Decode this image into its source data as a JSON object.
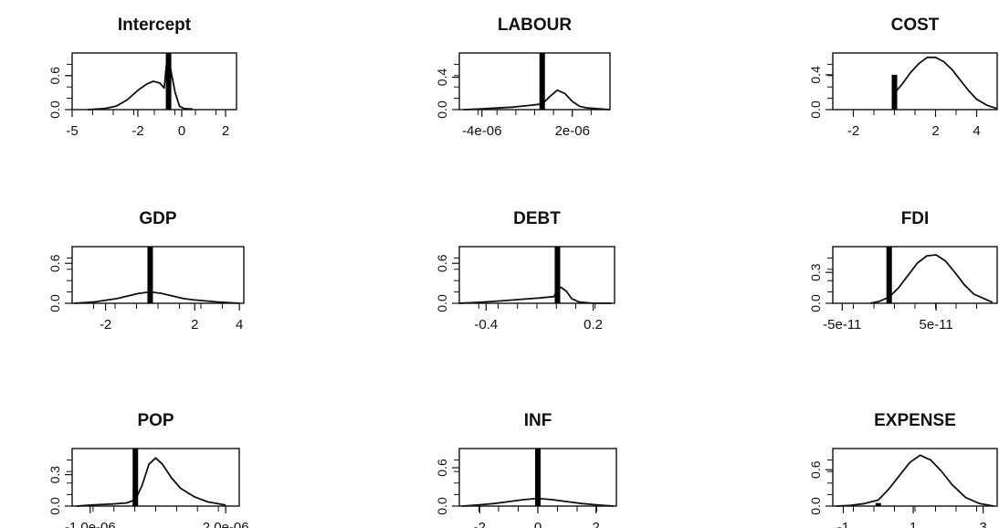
{
  "figure": {
    "description_type": "posterior-density-grid",
    "columns": 3,
    "rows": 3
  },
  "chart_data": [
    {
      "type": "line",
      "title": "Intercept",
      "xlabel": "",
      "ylabel": "",
      "xlim": [
        -5,
        2.5
      ],
      "ylim": [
        0,
        1.0
      ],
      "xticks": [
        -5,
        -2,
        0,
        2
      ],
      "xtick_labels": [
        "-5",
        "-2",
        "0",
        "2"
      ],
      "yticks": [
        0.0,
        0.6
      ],
      "ytick_labels": [
        "0.0",
        "0.6"
      ],
      "grid": false,
      "spike": {
        "x": -0.6,
        "height": 1.0
      },
      "curve": {
        "x": [
          -4.3,
          -3.5,
          -3.0,
          -2.5,
          -2.0,
          -1.6,
          -1.3,
          -1.0,
          -0.8,
          -0.65,
          -0.5,
          -0.3,
          -0.1,
          0.1,
          0.5
        ],
        "y": [
          0.0,
          0.02,
          0.06,
          0.17,
          0.34,
          0.45,
          0.5,
          0.47,
          0.38,
          0.98,
          0.7,
          0.3,
          0.06,
          0.02,
          0.01
        ]
      }
    },
    {
      "type": "line",
      "title": "LABOUR",
      "xlabel": "",
      "ylabel": "",
      "xlim": [
        -5.5e-06,
        4.5e-06
      ],
      "ylim": [
        0,
        0.7
      ],
      "xticks": [
        -4e-06,
        2e-06
      ],
      "xtick_labels": [
        "-4e-06",
        "2e-06"
      ],
      "yticks": [
        0.0,
        0.4
      ],
      "ytick_labels": [
        "0.0",
        "0.4"
      ],
      "grid": false,
      "spike": {
        "x": 0.0,
        "height": 0.72
      },
      "curve": {
        "x": [
          -5.2e-06,
          -4e-06,
          -3e-06,
          -2e-06,
          -1e-06,
          0,
          5e-07,
          1e-06,
          1.5e-06,
          2e-06,
          2.5e-06,
          3e-06,
          4.5e-06
        ],
        "y": [
          0.0,
          0.01,
          0.02,
          0.03,
          0.05,
          0.07,
          0.16,
          0.24,
          0.2,
          0.1,
          0.04,
          0.02,
          0.0
        ]
      }
    },
    {
      "type": "line",
      "title": "COST",
      "xlabel": "",
      "ylabel": "",
      "xlim": [
        -3,
        5
      ],
      "ylim": [
        0,
        0.65
      ],
      "xticks": [
        -2,
        2,
        4
      ],
      "xtick_labels": [
        "-2",
        "2",
        "4"
      ],
      "yticks": [
        0.0,
        0.4
      ],
      "ytick_labels": [
        "0.0",
        "0.4"
      ],
      "grid": false,
      "spike": {
        "x": 0.0,
        "height": 0.4
      },
      "curve": {
        "x": [
          0.0,
          0.4,
          0.8,
          1.2,
          1.6,
          2.0,
          2.4,
          2.8,
          3.2,
          3.6,
          4.0,
          4.5,
          5.0
        ],
        "y": [
          0.19,
          0.3,
          0.43,
          0.53,
          0.6,
          0.6,
          0.55,
          0.46,
          0.34,
          0.22,
          0.12,
          0.05,
          0.01
        ]
      }
    },
    {
      "type": "line",
      "title": "GDP",
      "xlabel": "",
      "ylabel": "",
      "xlim": [
        -3.5,
        4.2
      ],
      "ylim": [
        0,
        0.85
      ],
      "xticks": [
        -2,
        2,
        4
      ],
      "xtick_labels": [
        "-2",
        "2",
        "4"
      ],
      "yticks": [
        0.0,
        0.6
      ],
      "ytick_labels": [
        "0.0",
        "0.6"
      ],
      "grid": false,
      "spike": {
        "x": 0.0,
        "height": 0.85
      },
      "curve": {
        "x": [
          -3.4,
          -2.5,
          -1.5,
          -1.0,
          -0.5,
          0.0,
          0.5,
          1.0,
          1.5,
          2.0,
          3.0,
          4.0
        ],
        "y": [
          0.0,
          0.02,
          0.07,
          0.11,
          0.15,
          0.17,
          0.15,
          0.11,
          0.07,
          0.05,
          0.02,
          0.0
        ]
      }
    },
    {
      "type": "line",
      "title": "DEBT",
      "xlabel": "",
      "ylabel": "",
      "xlim": [
        -0.55,
        0.32
      ],
      "ylim": [
        0,
        0.85
      ],
      "xticks": [
        -0.4,
        0.2
      ],
      "xtick_labels": [
        "-0.4",
        "0.2"
      ],
      "yticks": [
        0.0,
        0.6
      ],
      "ytick_labels": [
        "0.0",
        "0.6"
      ],
      "grid": false,
      "spike": {
        "x": 0.0,
        "height": 0.85
      },
      "curve": {
        "x": [
          -0.55,
          -0.4,
          -0.3,
          -0.2,
          -0.1,
          -0.02,
          0.0,
          0.02,
          0.05,
          0.08,
          0.12,
          0.2,
          0.3
        ],
        "y": [
          0.0,
          0.02,
          0.04,
          0.06,
          0.08,
          0.1,
          0.2,
          0.24,
          0.18,
          0.07,
          0.02,
          0.0,
          0.0
        ]
      }
    },
    {
      "type": "line",
      "title": "FDI",
      "xlabel": "",
      "ylabel": "",
      "xlim": [
        -6e-11,
        1.15e-10
      ],
      "ylim": [
        0,
        0.55
      ],
      "xticks": [
        -5e-11,
        5e-11
      ],
      "xtick_labels": [
        "-5e-11",
        "5e-11"
      ],
      "yticks": [
        0.0,
        0.3
      ],
      "ytick_labels": [
        "0.0",
        "0.3"
      ],
      "grid": false,
      "spike": {
        "x": 0.0,
        "height": 0.55
      },
      "curve": {
        "x": [
          -2e-11,
          -1e-11,
          0,
          1e-11,
          2e-11,
          3e-11,
          4e-11,
          5e-11,
          6e-11,
          7e-11,
          8e-11,
          9e-11,
          1.1e-10
        ],
        "y": [
          0.0,
          0.02,
          0.06,
          0.15,
          0.27,
          0.39,
          0.46,
          0.47,
          0.41,
          0.3,
          0.18,
          0.09,
          0.01
        ]
      }
    },
    {
      "type": "line",
      "title": "POP",
      "xlabel": "",
      "ylabel": "",
      "xlim": [
        -1.4e-06,
        2.3e-06
      ],
      "ylim": [
        0,
        0.55
      ],
      "xticks": [
        -1e-06,
        2e-06
      ],
      "xtick_labels": [
        "-1.0e-06",
        "2.0e-06"
      ],
      "yticks": [
        0.0,
        0.3
      ],
      "ytick_labels": [
        "0.0",
        "0.3"
      ],
      "grid": false,
      "spike": {
        "x": 0.0,
        "height": 0.55
      },
      "curve": {
        "x": [
          -1.3e-06,
          -1e-06,
          -5e-07,
          -2e-07,
          0,
          1.5e-07,
          3e-07,
          4.5e-07,
          6e-07,
          8e-07,
          1e-06,
          1.3e-06,
          1.6e-06,
          2e-06
        ],
        "y": [
          0.0,
          0.01,
          0.02,
          0.03,
          0.06,
          0.2,
          0.4,
          0.46,
          0.4,
          0.27,
          0.17,
          0.09,
          0.04,
          0.01
        ]
      }
    },
    {
      "type": "line",
      "title": "INF",
      "xlabel": "",
      "ylabel": "",
      "xlim": [
        -2.7,
        2.7
      ],
      "ylim": [
        0,
        0.9
      ],
      "xticks": [
        -2,
        0,
        2
      ],
      "xtick_labels": [
        "-2",
        "0",
        "2"
      ],
      "yticks": [
        0.0,
        0.6
      ],
      "ytick_labels": [
        "0.0",
        "0.6"
      ],
      "grid": false,
      "spike": {
        "x": 0.0,
        "height": 0.9
      },
      "curve": {
        "x": [
          -2.6,
          -2.0,
          -1.5,
          -1.0,
          -0.5,
          0.0,
          0.5,
          1.0,
          1.5,
          2.0,
          2.6
        ],
        "y": [
          0.0,
          0.02,
          0.04,
          0.07,
          0.1,
          0.12,
          0.1,
          0.07,
          0.04,
          0.02,
          0.0
        ]
      }
    },
    {
      "type": "line",
      "title": "EXPENSE",
      "xlabel": "",
      "ylabel": "",
      "xlim": [
        -1.3,
        3.4
      ],
      "ylim": [
        0,
        0.95
      ],
      "xticks": [
        -1,
        1,
        3
      ],
      "xtick_labels": [
        "-1",
        "1",
        "3"
      ],
      "yticks": [
        0.0,
        0.6
      ],
      "ytick_labels": [
        "0.0",
        "0.6"
      ],
      "grid": false,
      "spike": {
        "x": 0.0,
        "height": 0.05
      },
      "curve": {
        "x": [
          -1.2,
          -0.8,
          -0.4,
          0.0,
          0.3,
          0.6,
          0.9,
          1.2,
          1.5,
          1.8,
          2.1,
          2.5,
          2.9,
          3.3
        ],
        "y": [
          0.0,
          0.01,
          0.04,
          0.1,
          0.28,
          0.5,
          0.72,
          0.84,
          0.76,
          0.58,
          0.36,
          0.14,
          0.04,
          0.0
        ]
      }
    }
  ]
}
